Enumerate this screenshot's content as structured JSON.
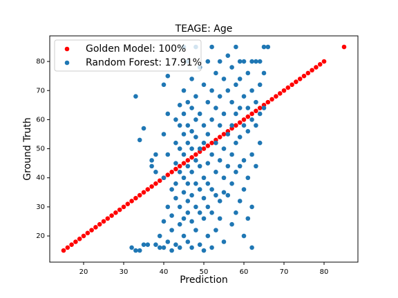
{
  "chart_data": {
    "type": "scatter",
    "title": "TEAGE: Age",
    "xlabel": "Prediction",
    "ylabel": "Ground Truth",
    "xlim": [
      11.55,
      88.45
    ],
    "ylim": [
      11,
      88.8
    ],
    "xticks": [
      20,
      30,
      40,
      50,
      60,
      70,
      80
    ],
    "yticks": [
      20,
      30,
      40,
      50,
      60,
      70,
      80
    ],
    "grid": false,
    "legend": "upper left",
    "series": [
      {
        "name": "Golden Model: 100%",
        "color": "#ff0000",
        "x": [
          15,
          16,
          17,
          18,
          19,
          20,
          21,
          22,
          23,
          24,
          25,
          26,
          27,
          28,
          29,
          30,
          31,
          32,
          33,
          34,
          35,
          36,
          37,
          38,
          39,
          40,
          41,
          42,
          43,
          44,
          45,
          46,
          47,
          48,
          49,
          50,
          51,
          52,
          53,
          54,
          55,
          56,
          57,
          58,
          59,
          60,
          61,
          62,
          63,
          64,
          65,
          66,
          67,
          68,
          69,
          70,
          71,
          72,
          73,
          74,
          75,
          76,
          77,
          78,
          79,
          80,
          85
        ],
        "values": [
          15,
          16,
          17,
          18,
          19,
          20,
          21,
          22,
          23,
          24,
          25,
          26,
          27,
          28,
          29,
          30,
          31,
          32,
          33,
          34,
          35,
          36,
          37,
          38,
          39,
          40,
          41,
          42,
          43,
          44,
          45,
          46,
          47,
          48,
          49,
          50,
          51,
          52,
          53,
          54,
          55,
          56,
          57,
          58,
          59,
          60,
          61,
          62,
          63,
          64,
          65,
          66,
          67,
          68,
          69,
          70,
          71,
          72,
          73,
          74,
          75,
          76,
          77,
          78,
          79,
          80,
          85
        ]
      },
      {
        "name": "Random Forest: 17.91%",
        "color": "#1f77b4",
        "x": [
          33,
          34,
          35,
          32,
          33,
          34,
          35,
          36,
          37,
          37,
          38,
          38,
          38,
          39,
          39,
          40,
          40,
          40,
          40,
          40,
          41,
          41,
          41,
          41,
          41,
          42,
          42,
          42,
          42,
          43,
          43,
          43,
          43,
          43,
          43,
          44,
          44,
          44,
          44,
          44,
          44,
          44,
          45,
          45,
          45,
          45,
          45,
          45,
          45,
          45,
          45,
          46,
          46,
          46,
          46,
          46,
          46,
          46,
          46,
          46,
          47,
          47,
          47,
          47,
          47,
          47,
          47,
          47,
          48,
          48,
          48,
          48,
          48,
          48,
          48,
          48,
          49,
          49,
          49,
          49,
          49,
          49,
          49,
          50,
          50,
          50,
          50,
          50,
          50,
          50,
          51,
          51,
          51,
          51,
          51,
          51,
          51,
          52,
          52,
          52,
          52,
          52,
          52,
          52,
          53,
          53,
          53,
          53,
          53,
          53,
          54,
          54,
          54,
          54,
          54,
          54,
          55,
          55,
          55,
          55,
          55,
          55,
          56,
          56,
          56,
          56,
          56,
          57,
          57,
          57,
          57,
          57,
          57,
          58,
          58,
          58,
          58,
          58,
          58,
          59,
          59,
          59,
          59,
          59,
          59,
          60,
          60,
          60,
          60,
          60,
          60,
          61,
          61,
          61,
          61,
          61,
          62,
          62,
          62,
          62,
          62,
          62,
          63,
          63,
          63,
          63,
          64,
          64,
          64,
          64,
          65,
          65,
          65,
          66
        ],
        "values": [
          68,
          53,
          57,
          16,
          15,
          15,
          17,
          17,
          44,
          46,
          48,
          42,
          17,
          20,
          16,
          72,
          55,
          40,
          25,
          16,
          75,
          62,
          48,
          30,
          18,
          36,
          27,
          22,
          15,
          60,
          52,
          45,
          38,
          33,
          17,
          65,
          58,
          50,
          42,
          30,
          24,
          16,
          85,
          70,
          62,
          55,
          48,
          40,
          35,
          26,
          20,
          80,
          66,
          58,
          52,
          44,
          38,
          32,
          28,
          18,
          74,
          64,
          56,
          50,
          42,
          34,
          25,
          16,
          85,
          68,
          60,
          54,
          46,
          38,
          30,
          22,
          78,
          62,
          50,
          44,
          36,
          28,
          17,
          72,
          58,
          52,
          40,
          33,
          26,
          15,
          80,
          66,
          55,
          45,
          38,
          30,
          20,
          85,
          70,
          60,
          48,
          36,
          28,
          16,
          76,
          64,
          52,
          42,
          34,
          22,
          80,
          68,
          58,
          46,
          32,
          26,
          74,
          62,
          50,
          40,
          35,
          18,
          82,
          70,
          55,
          44,
          34,
          78,
          66,
          58,
          48,
          38,
          24,
          85,
          72,
          62,
          52,
          42,
          28,
          80,
          74,
          64,
          54,
          44,
          32,
          80,
          68,
          58,
          46,
          36,
          20,
          76,
          64,
          56,
          40,
          26,
          80,
          70,
          60,
          48,
          30,
          16,
          80,
          66,
          58,
          44,
          80,
          72,
          62,
          52,
          85,
          76,
          64,
          85
        ]
      }
    ]
  }
}
